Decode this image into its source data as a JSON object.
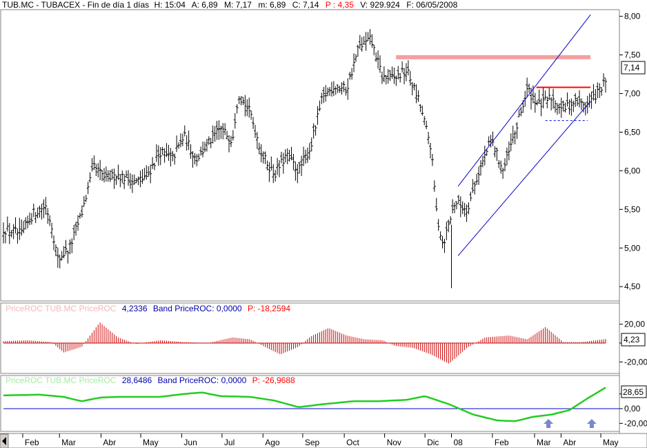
{
  "header": {
    "symbol": "TUB.MC - TUBACEX - Fin de día 1 días",
    "h_label": "H: 15:04",
    "a_label": "A: 6,89",
    "m_label": "M: 7,17",
    "min_label": "m: 6,89",
    "c_label": "C: 7,14",
    "p_label": "P : 4,35",
    "v_label": "V: 929.924",
    "f_label": "F: 06/05/2008"
  },
  "roc_panel": {
    "faded_title": "PriceROC  TUB.MC PriceROC",
    "value_label": "4,2336",
    "band_label": "Band  PriceROC: 0,0000",
    "p_label": "P: -18,2594",
    "last_value_box": "4,23",
    "tick_labels": [
      "20,00",
      "0,00",
      "-20,00"
    ]
  },
  "roc_line_panel": {
    "faded_title": "PriceROC  TUB.MC PriceROC",
    "value_label": "28,6486",
    "band_label": "Band  PriceROC: 0,0000",
    "p_label": "P: -26,9688",
    "last_value_box": "28,65",
    "tick_labels": [
      "20,00",
      "0,00",
      "-20,00"
    ]
  },
  "price_axis": {
    "last_value_box": "7,14",
    "tick_labels": [
      "8,00",
      "7,50",
      "7,00",
      "6,50",
      "6,00",
      "5,50",
      "5,00",
      "4,50"
    ]
  },
  "time_axis": {
    "labels": [
      "Feb",
      "Mar",
      "Abr",
      "May",
      "Jun",
      "Jul",
      "Ago",
      "Sep",
      "Oct",
      "Nov",
      "Dic",
      "08",
      "Feb",
      "Mar",
      "Abr",
      "May"
    ]
  },
  "colors": {
    "price_bars": "#000000",
    "channel_lines": "#0000cc",
    "resistance_band": "#f4a0a0",
    "resistance_line": "#ff0000",
    "support_dashed": "#0000cc",
    "roc_histogram": "#cc0000",
    "roc_line": "#22cc22",
    "arrows": "#7788cc"
  },
  "chart_data": [
    {
      "type": "bar",
      "subtype": "ohlc",
      "title": "TUB.MC - TUBACEX - Fin de día 1 días",
      "ylim": [
        4.35,
        8.05
      ],
      "yticks": [
        8.0,
        7.5,
        7.0,
        6.5,
        6.0,
        5.5,
        5.0,
        4.5
      ],
      "x_months": [
        "Feb",
        "Mar",
        "Abr",
        "May",
        "Jun",
        "Jul",
        "Ago",
        "Sep",
        "Oct",
        "Nov",
        "Dic",
        "08",
        "Feb",
        "Mar",
        "Abr",
        "May"
      ],
      "last": {
        "open": 6.89,
        "high": 7.17,
        "low": 6.89,
        "close": 7.14,
        "volume": 929924,
        "date": "06/05/2008"
      },
      "approx_close_path": [
        {
          "x": 0,
          "y": 5.25
        },
        {
          "x": 0.03,
          "y": 5.18
        },
        {
          "x": 0.05,
          "y": 5.45
        },
        {
          "x": 0.07,
          "y": 5.55
        },
        {
          "x": 0.08,
          "y": 5.3
        },
        {
          "x": 0.09,
          "y": 4.85
        },
        {
          "x": 0.11,
          "y": 5.0
        },
        {
          "x": 0.13,
          "y": 5.45
        },
        {
          "x": 0.15,
          "y": 6.05
        },
        {
          "x": 0.17,
          "y": 5.9
        },
        {
          "x": 0.19,
          "y": 5.95
        },
        {
          "x": 0.22,
          "y": 5.85
        },
        {
          "x": 0.24,
          "y": 5.95
        },
        {
          "x": 0.26,
          "y": 6.25
        },
        {
          "x": 0.28,
          "y": 6.15
        },
        {
          "x": 0.3,
          "y": 6.45
        },
        {
          "x": 0.32,
          "y": 6.15
        },
        {
          "x": 0.34,
          "y": 6.35
        },
        {
          "x": 0.36,
          "y": 6.55
        },
        {
          "x": 0.38,
          "y": 6.4
        },
        {
          "x": 0.39,
          "y": 7.0
        },
        {
          "x": 0.41,
          "y": 6.75
        },
        {
          "x": 0.43,
          "y": 6.2
        },
        {
          "x": 0.45,
          "y": 5.95
        },
        {
          "x": 0.47,
          "y": 6.2
        },
        {
          "x": 0.49,
          "y": 6.0
        },
        {
          "x": 0.51,
          "y": 6.3
        },
        {
          "x": 0.53,
          "y": 6.95
        },
        {
          "x": 0.55,
          "y": 7.1
        },
        {
          "x": 0.57,
          "y": 7.05
        },
        {
          "x": 0.59,
          "y": 7.6
        },
        {
          "x": 0.61,
          "y": 7.7
        },
        {
          "x": 0.63,
          "y": 7.2
        },
        {
          "x": 0.65,
          "y": 7.2
        },
        {
          "x": 0.67,
          "y": 7.3
        },
        {
          "x": 0.69,
          "y": 6.9
        },
        {
          "x": 0.71,
          "y": 6.3
        },
        {
          "x": 0.72,
          "y": 5.4
        },
        {
          "x": 0.73,
          "y": 5.05
        },
        {
          "x": 0.75,
          "y": 5.6
        },
        {
          "x": 0.77,
          "y": 5.5
        },
        {
          "x": 0.79,
          "y": 6.0
        },
        {
          "x": 0.81,
          "y": 6.4
        },
        {
          "x": 0.83,
          "y": 6.0
        },
        {
          "x": 0.85,
          "y": 6.5
        },
        {
          "x": 0.87,
          "y": 7.05
        },
        {
          "x": 0.89,
          "y": 6.85
        },
        {
          "x": 0.91,
          "y": 6.95
        },
        {
          "x": 0.93,
          "y": 6.8
        },
        {
          "x": 0.95,
          "y": 6.9
        },
        {
          "x": 0.97,
          "y": 6.85
        },
        {
          "x": 1.0,
          "y": 7.14
        }
      ],
      "annotations": [
        {
          "type": "horizontal_band",
          "y": 7.47,
          "from_x": 0.652,
          "to_x": 0.975
        },
        {
          "type": "horizontal_line",
          "y": 7.08,
          "from_x": 0.885,
          "to_x": 0.975
        },
        {
          "type": "dashed_line",
          "y": 6.65,
          "from_x": 0.9,
          "to_x": 0.97
        },
        {
          "type": "channel_line",
          "points": [
            [
              0.755,
              5.8
            ],
            [
              0.975,
              8.02
            ]
          ]
        },
        {
          "type": "channel_line",
          "points": [
            [
              0.755,
              4.9
            ],
            [
              0.975,
              6.9
            ]
          ]
        }
      ]
    },
    {
      "type": "bar",
      "subtype": "histogram",
      "title": "PriceROC TUB.MC PriceROC",
      "ylim": [
        -30,
        30
      ],
      "yticks": [
        20,
        0,
        -20
      ],
      "last_value": 4.2336,
      "approx_values": [
        {
          "x": 0,
          "y": 2
        },
        {
          "x": 0.04,
          "y": 3
        },
        {
          "x": 0.08,
          "y": 1
        },
        {
          "x": 0.1,
          "y": -10
        },
        {
          "x": 0.13,
          "y": -4
        },
        {
          "x": 0.16,
          "y": 22
        },
        {
          "x": 0.19,
          "y": 6
        },
        {
          "x": 0.22,
          "y": -1
        },
        {
          "x": 0.26,
          "y": 3
        },
        {
          "x": 0.3,
          "y": 1
        },
        {
          "x": 0.34,
          "y": 0
        },
        {
          "x": 0.38,
          "y": 6
        },
        {
          "x": 0.41,
          "y": 4
        },
        {
          "x": 0.44,
          "y": -6
        },
        {
          "x": 0.46,
          "y": -12
        },
        {
          "x": 0.49,
          "y": -4
        },
        {
          "x": 0.51,
          "y": 7
        },
        {
          "x": 0.54,
          "y": 16
        },
        {
          "x": 0.57,
          "y": 8
        },
        {
          "x": 0.6,
          "y": 4
        },
        {
          "x": 0.63,
          "y": 3
        },
        {
          "x": 0.65,
          "y": -3
        },
        {
          "x": 0.68,
          "y": -5
        },
        {
          "x": 0.71,
          "y": -12
        },
        {
          "x": 0.74,
          "y": -22
        },
        {
          "x": 0.77,
          "y": -5
        },
        {
          "x": 0.8,
          "y": 6
        },
        {
          "x": 0.84,
          "y": 8
        },
        {
          "x": 0.87,
          "y": 4
        },
        {
          "x": 0.9,
          "y": 17
        },
        {
          "x": 0.93,
          "y": 1
        },
        {
          "x": 0.96,
          "y": 1
        },
        {
          "x": 1.0,
          "y": 4.23
        }
      ]
    },
    {
      "type": "line",
      "title": "PriceROC TUB.MC PriceROC",
      "ylim": [
        -30,
        30
      ],
      "yticks": [
        20,
        0,
        -20
      ],
      "last_value": 28.6486,
      "series": [
        {
          "name": "PriceROC",
          "points": [
            {
              "x": 0,
              "y": 18
            },
            {
              "x": 0.06,
              "y": 19
            },
            {
              "x": 0.1,
              "y": 16
            },
            {
              "x": 0.13,
              "y": 10
            },
            {
              "x": 0.16,
              "y": 15
            },
            {
              "x": 0.19,
              "y": 16
            },
            {
              "x": 0.22,
              "y": 16
            },
            {
              "x": 0.26,
              "y": 16
            },
            {
              "x": 0.3,
              "y": 20
            },
            {
              "x": 0.33,
              "y": 22
            },
            {
              "x": 0.36,
              "y": 17
            },
            {
              "x": 0.41,
              "y": 16
            },
            {
              "x": 0.45,
              "y": 11
            },
            {
              "x": 0.49,
              "y": 2
            },
            {
              "x": 0.53,
              "y": 6
            },
            {
              "x": 0.58,
              "y": 10
            },
            {
              "x": 0.62,
              "y": 10
            },
            {
              "x": 0.67,
              "y": 12
            },
            {
              "x": 0.7,
              "y": 17
            },
            {
              "x": 0.74,
              "y": 6
            },
            {
              "x": 0.78,
              "y": -8
            },
            {
              "x": 0.82,
              "y": -16
            },
            {
              "x": 0.85,
              "y": -17
            },
            {
              "x": 0.88,
              "y": -11
            },
            {
              "x": 0.91,
              "y": -8
            },
            {
              "x": 0.94,
              "y": -2
            },
            {
              "x": 0.97,
              "y": 14
            },
            {
              "x": 1.0,
              "y": 28.65
            }
          ]
        }
      ],
      "annotations": [
        {
          "type": "arrow_up",
          "x": 0.905
        },
        {
          "type": "arrow_up",
          "x": 0.977
        }
      ]
    }
  ]
}
